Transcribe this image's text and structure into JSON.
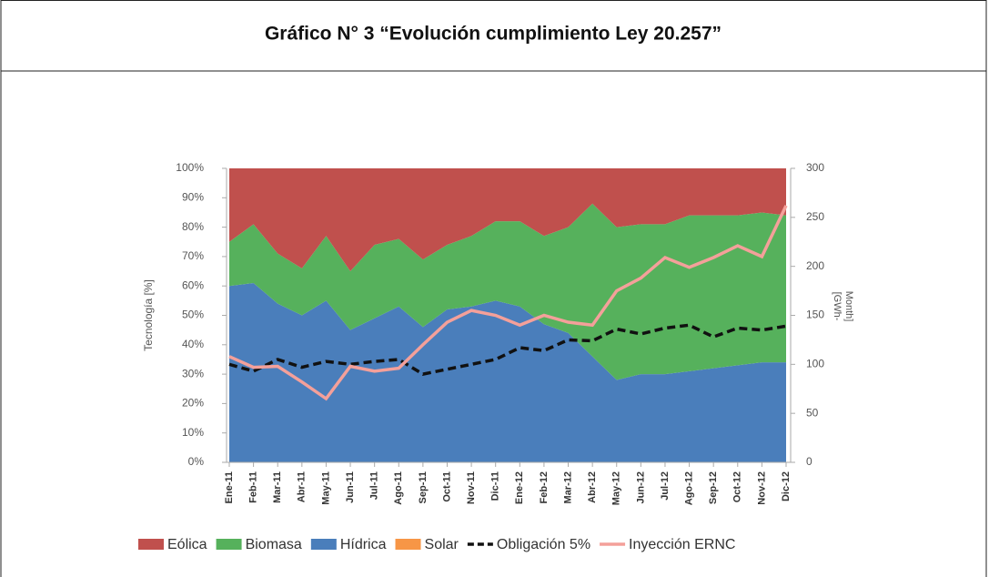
{
  "chart_data": {
    "type": "stacked-area",
    "title": "Gráfico N° 3 “Evolución cumplimiento Ley 20.257”",
    "ylabel": "Tecnología [%]",
    "y2label": [
      "[GWh-",
      "Month]"
    ],
    "categories": [
      "Ene-11",
      "Feb-11",
      "Mar-11",
      "Abr-11",
      "May-11",
      "Jun-11",
      "Jul-11",
      "Ago-11",
      "Sep-11",
      "Oct-11",
      "Nov-11",
      "Dic-11",
      "Ene-12",
      "Feb-12",
      "Mar-12",
      "Abr-12",
      "May-12",
      "Jun-12",
      "Jul-12",
      "Ago-12",
      "Sep-12",
      "Oct-12",
      "Nov-12",
      "Dic-12"
    ],
    "series": [
      {
        "name": "Eólica",
        "color": "#c0504d",
        "kind": "area",
        "values": [
          25,
          19,
          29,
          34,
          23,
          35,
          26,
          24,
          31,
          26,
          23,
          18,
          18,
          23,
          20,
          12,
          20,
          19,
          19,
          16,
          16,
          16,
          15,
          16
        ]
      },
      {
        "name": "Biomasa",
        "color": "#56b15c",
        "kind": "area",
        "values": [
          15,
          20,
          17,
          16,
          22,
          20,
          25,
          23,
          23,
          22,
          24,
          27,
          29,
          30,
          36,
          52,
          52,
          51,
          51,
          53,
          52,
          51,
          51,
          50
        ]
      },
      {
        "name": "Hídrica",
        "color": "#4a7ebb",
        "kind": "area",
        "values": [
          60,
          61,
          54,
          50,
          55,
          45,
          49,
          53,
          46,
          52,
          53,
          55,
          53,
          47,
          44,
          36,
          28,
          30,
          30,
          31,
          32,
          33,
          34,
          34
        ]
      },
      {
        "name": "Solar",
        "color": "#f79646",
        "kind": "area",
        "values": [
          0,
          0,
          0,
          0,
          0,
          0,
          0,
          0,
          0,
          0,
          0,
          0,
          0,
          0,
          0,
          0,
          0,
          0,
          0,
          0,
          0,
          0,
          0,
          0
        ]
      },
      {
        "name": "Obligación 5%",
        "color": "#111111",
        "kind": "line",
        "dashed": true,
        "axis": "y2",
        "values": [
          100,
          93,
          105,
          97,
          103,
          100,
          103,
          105,
          90,
          95,
          100,
          105,
          117,
          114,
          125,
          124,
          136,
          131,
          137,
          140,
          128,
          137,
          135,
          139
        ]
      },
      {
        "name": "Inyección ERNC",
        "color": "#f4a09a",
        "kind": "line",
        "dashed": false,
        "axis": "y2",
        "values": [
          108,
          97,
          98,
          82,
          65,
          98,
          93,
          96,
          120,
          143,
          155,
          150,
          140,
          150,
          143,
          140,
          175,
          188,
          209,
          199,
          209,
          221,
          210,
          262
        ]
      }
    ],
    "ylim": [
      0,
      100
    ],
    "yticks": [
      {
        "value": 0,
        "label": "0%"
      },
      {
        "value": 10,
        "label": "10%"
      },
      {
        "value": 20,
        "label": "20%"
      },
      {
        "value": 30,
        "label": "30%"
      },
      {
        "value": 40,
        "label": "40%"
      },
      {
        "value": 50,
        "label": "50%"
      },
      {
        "value": 60,
        "label": "60%"
      },
      {
        "value": 70,
        "label": "70%"
      },
      {
        "value": 80,
        "label": "80%"
      },
      {
        "value": 90,
        "label": "90%"
      },
      {
        "value": 100,
        "label": "100%"
      }
    ],
    "y2lim": [
      0,
      300
    ],
    "y2ticks": [
      0,
      50,
      100,
      150,
      200,
      250,
      300
    ],
    "legend": "bottom"
  }
}
